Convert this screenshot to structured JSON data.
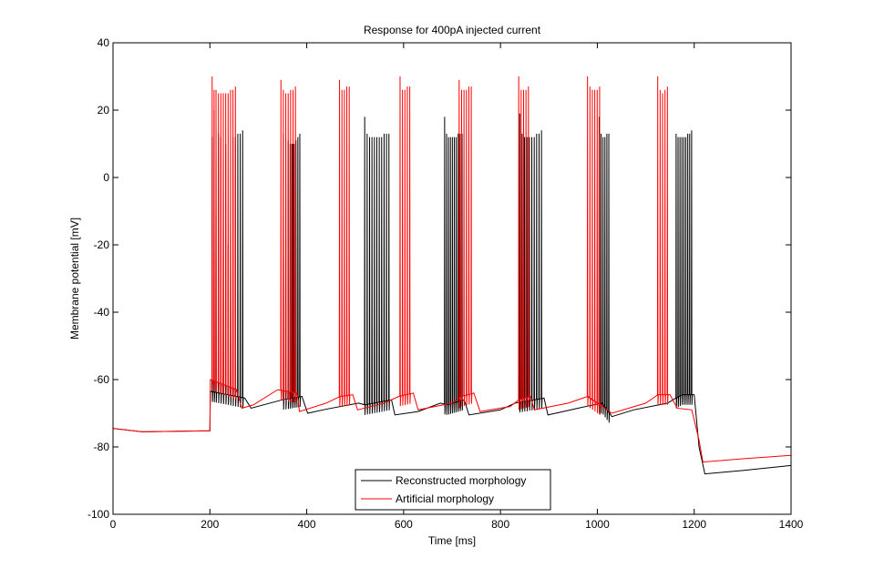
{
  "chart_data": {
    "type": "line",
    "title": "Response for 400pA injected current",
    "xlabel": "Time [ms]",
    "ylabel": "Membrane potential [mV]",
    "xlim": [
      0,
      1400
    ],
    "ylim": [
      -100,
      40
    ],
    "xticks": [
      0,
      200,
      400,
      600,
      800,
      1000,
      1200,
      1400
    ],
    "yticks": [
      -100,
      -80,
      -60,
      -40,
      -20,
      0,
      20,
      40
    ],
    "grid": false,
    "legend_position": "bottom-center",
    "series": [
      {
        "name": "Reconstructed morphology",
        "color": "#000000",
        "baseline": [
          [
            0,
            -74.5
          ],
          [
            60,
            -75.5
          ],
          [
            200,
            -75.2
          ],
          [
            201,
            -63.5
          ],
          [
            272,
            -65.5
          ],
          [
            285,
            -68.5
          ],
          [
            350,
            -66
          ],
          [
            390,
            -65
          ],
          [
            402,
            -70
          ],
          [
            440,
            -68.8
          ],
          [
            507,
            -67
          ],
          [
            520,
            -67.5
          ],
          [
            575,
            -66
          ],
          [
            582,
            -70.5
          ],
          [
            630,
            -69.5
          ],
          [
            676,
            -67
          ],
          [
            690,
            -67.5
          ],
          [
            725,
            -66
          ],
          [
            735,
            -70.5
          ],
          [
            800,
            -69
          ],
          [
            830,
            -67
          ],
          [
            850,
            -66.5
          ],
          [
            890,
            -65.5
          ],
          [
            898,
            -70.5
          ],
          [
            960,
            -68.5
          ],
          [
            1010,
            -67
          ],
          [
            1030,
            -71
          ],
          [
            1075,
            -69
          ],
          [
            1145,
            -67
          ],
          [
            1175,
            -64.5
          ],
          [
            1200,
            -64.5
          ],
          [
            1210,
            -80
          ],
          [
            1222,
            -88
          ],
          [
            1300,
            -87
          ],
          [
            1400,
            -85.5
          ]
        ],
        "bursts": [
          {
            "start": 200,
            "end": 272,
            "spikes": [
              {
                "t": 205,
                "peak": 12
              },
              {
                "t": 209,
                "peak": 20
              },
              {
                "t": 213,
                "peak": 15
              },
              {
                "t": 218,
                "peak": 13
              },
              {
                "t": 223,
                "peak": 12
              },
              {
                "t": 228,
                "peak": 10
              },
              {
                "t": 233,
                "peak": 10
              },
              {
                "t": 238,
                "peak": -20
              },
              {
                "t": 243,
                "peak": -10
              },
              {
                "t": 248,
                "peak": 12
              },
              {
                "t": 253,
                "peak": 12
              },
              {
                "t": 258,
                "peak": 13
              },
              {
                "t": 263,
                "peak": 13
              },
              {
                "t": 268,
                "peak": 14
              }
            ]
          },
          {
            "start": 348,
            "end": 390,
            "spikes": [
              {
                "t": 352,
                "peak": 13
              },
              {
                "t": 357,
                "peak": 12
              },
              {
                "t": 362,
                "peak": 11
              },
              {
                "t": 366,
                "peak": 10
              },
              {
                "t": 370,
                "peak": 10
              },
              {
                "t": 374,
                "peak": 10
              },
              {
                "t": 378,
                "peak": 11
              },
              {
                "t": 382,
                "peak": 12
              },
              {
                "t": 386,
                "peak": 13
              }
            ]
          },
          {
            "start": 516,
            "end": 575,
            "spikes": [
              {
                "t": 520,
                "peak": 18
              },
              {
                "t": 525,
                "peak": 13
              },
              {
                "t": 530,
                "peak": 12
              },
              {
                "t": 535,
                "peak": 12
              },
              {
                "t": 540,
                "peak": 12
              },
              {
                "t": 545,
                "peak": 12
              },
              {
                "t": 550,
                "peak": 12
              },
              {
                "t": 555,
                "peak": 12
              },
              {
                "t": 560,
                "peak": 13
              },
              {
                "t": 565,
                "peak": 13
              },
              {
                "t": 570,
                "peak": 13
              }
            ]
          },
          {
            "start": 683,
            "end": 725,
            "spikes": [
              {
                "t": 685,
                "peak": 18
              },
              {
                "t": 689,
                "peak": 13
              },
              {
                "t": 693,
                "peak": 12
              },
              {
                "t": 697,
                "peak": 12
              },
              {
                "t": 701,
                "peak": 12
              },
              {
                "t": 705,
                "peak": 12
              },
              {
                "t": 709,
                "peak": 12
              },
              {
                "t": 713,
                "peak": 13
              },
              {
                "t": 717,
                "peak": 13
              },
              {
                "t": 721,
                "peak": 13
              }
            ]
          },
          {
            "start": 835,
            "end": 890,
            "spikes": [
              {
                "t": 840,
                "peak": 19
              },
              {
                "t": 845,
                "peak": 13
              },
              {
                "t": 850,
                "peak": 12
              },
              {
                "t": 855,
                "peak": 12
              },
              {
                "t": 860,
                "peak": 12
              },
              {
                "t": 865,
                "peak": 12
              },
              {
                "t": 870,
                "peak": 12
              },
              {
                "t": 875,
                "peak": 13
              },
              {
                "t": 880,
                "peak": 13
              },
              {
                "t": 885,
                "peak": 14
              }
            ]
          },
          {
            "start": 1000,
            "end": 1030,
            "spikes": [
              {
                "t": 1004,
                "peak": 18
              },
              {
                "t": 1008,
                "peak": 13
              },
              {
                "t": 1012,
                "peak": 12
              },
              {
                "t": 1016,
                "peak": 12
              },
              {
                "t": 1020,
                "peak": 13
              },
              {
                "t": 1024,
                "peak": 13
              }
            ]
          },
          {
            "start": 1160,
            "end": 1200,
            "spikes": [
              {
                "t": 1163,
                "peak": 13
              },
              {
                "t": 1167,
                "peak": 12
              },
              {
                "t": 1171,
                "peak": 12
              },
              {
                "t": 1175,
                "peak": 12
              },
              {
                "t": 1179,
                "peak": 12
              },
              {
                "t": 1183,
                "peak": 12
              },
              {
                "t": 1187,
                "peak": 13
              },
              {
                "t": 1191,
                "peak": 13
              },
              {
                "t": 1195,
                "peak": 14
              }
            ]
          }
        ]
      },
      {
        "name": "Artificial morphology",
        "color": "#ff0000",
        "baseline": [
          [
            0,
            -74.5
          ],
          [
            60,
            -75.5
          ],
          [
            200,
            -75.2
          ],
          [
            201,
            -60
          ],
          [
            255,
            -63
          ],
          [
            266,
            -68.5
          ],
          [
            290,
            -67.5
          ],
          [
            340,
            -63
          ],
          [
            380,
            -64
          ],
          [
            385,
            -69.5
          ],
          [
            440,
            -67
          ],
          [
            470,
            -65
          ],
          [
            495,
            -64.5
          ],
          [
            505,
            -69
          ],
          [
            560,
            -67
          ],
          [
            590,
            -65
          ],
          [
            620,
            -64
          ],
          [
            630,
            -69
          ],
          [
            700,
            -67
          ],
          [
            720,
            -65
          ],
          [
            745,
            -64
          ],
          [
            758,
            -69.5
          ],
          [
            820,
            -68
          ],
          [
            838,
            -66
          ],
          [
            862,
            -65
          ],
          [
            870,
            -69
          ],
          [
            940,
            -67
          ],
          [
            980,
            -65
          ],
          [
            1030,
            -70
          ],
          [
            1100,
            -67
          ],
          [
            1125,
            -64.5
          ],
          [
            1150,
            -64.5
          ],
          [
            1165,
            -68.5
          ],
          [
            1195,
            -69
          ],
          [
            1210,
            -78
          ],
          [
            1218,
            -84.5
          ],
          [
            1300,
            -83.5
          ],
          [
            1400,
            -82.5
          ]
        ],
        "bursts": [
          {
            "start": 200,
            "end": 255,
            "spikes": [
              {
                "t": 205,
                "peak": 30
              },
              {
                "t": 209,
                "peak": 26
              },
              {
                "t": 213,
                "peak": 26
              },
              {
                "t": 218,
                "peak": 25
              },
              {
                "t": 223,
                "peak": 25
              },
              {
                "t": 228,
                "peak": 25
              },
              {
                "t": 233,
                "peak": 25
              },
              {
                "t": 238,
                "peak": 25
              },
              {
                "t": 243,
                "peak": 26
              },
              {
                "t": 248,
                "peak": 26
              },
              {
                "t": 253,
                "peak": 27
              }
            ]
          },
          {
            "start": 345,
            "end": 385,
            "spikes": [
              {
                "t": 347,
                "peak": 29
              },
              {
                "t": 352,
                "peak": 26
              },
              {
                "t": 357,
                "peak": 25
              },
              {
                "t": 362,
                "peak": 25
              },
              {
                "t": 367,
                "peak": 26
              },
              {
                "t": 372,
                "peak": 26
              },
              {
                "t": 377,
                "peak": 27
              }
            ]
          },
          {
            "start": 465,
            "end": 495,
            "spikes": [
              {
                "t": 468,
                "peak": 29
              },
              {
                "t": 473,
                "peak": 26
              },
              {
                "t": 478,
                "peak": 26
              },
              {
                "t": 483,
                "peak": 27
              },
              {
                "t": 488,
                "peak": 27
              }
            ]
          },
          {
            "start": 590,
            "end": 620,
            "spikes": [
              {
                "t": 593,
                "peak": 30
              },
              {
                "t": 598,
                "peak": 26
              },
              {
                "t": 603,
                "peak": 26
              },
              {
                "t": 608,
                "peak": 27
              },
              {
                "t": 613,
                "peak": 27
              }
            ]
          },
          {
            "start": 710,
            "end": 745,
            "spikes": [
              {
                "t": 715,
                "peak": 29
              },
              {
                "t": 720,
                "peak": 26
              },
              {
                "t": 725,
                "peak": 26
              },
              {
                "t": 730,
                "peak": 26
              },
              {
                "t": 735,
                "peak": 27
              },
              {
                "t": 740,
                "peak": 27
              }
            ]
          },
          {
            "start": 835,
            "end": 862,
            "spikes": [
              {
                "t": 838,
                "peak": 30
              },
              {
                "t": 843,
                "peak": 26
              },
              {
                "t": 848,
                "peak": 26
              },
              {
                "t": 853,
                "peak": 26
              },
              {
                "t": 858,
                "peak": 27
              }
            ]
          },
          {
            "start": 975,
            "end": 1005,
            "spikes": [
              {
                "t": 980,
                "peak": 30
              },
              {
                "t": 985,
                "peak": 27
              },
              {
                "t": 990,
                "peak": 26
              },
              {
                "t": 995,
                "peak": 26
              },
              {
                "t": 1000,
                "peak": 26
              },
              {
                "t": 1005,
                "peak": 27
              }
            ]
          },
          {
            "start": 1120,
            "end": 1150,
            "spikes": [
              {
                "t": 1125,
                "peak": 30
              },
              {
                "t": 1130,
                "peak": 26
              },
              {
                "t": 1135,
                "peak": 25
              },
              {
                "t": 1140,
                "peak": 26
              },
              {
                "t": 1145,
                "peak": 27
              }
            ]
          }
        ]
      }
    ]
  }
}
